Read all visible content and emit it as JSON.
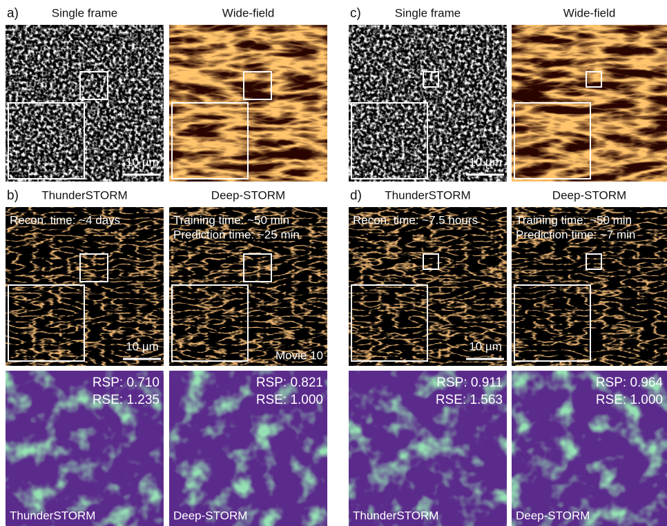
{
  "panels": [
    {
      "label": "a)",
      "frames": [
        {
          "title": "Single frame",
          "scale_bar": "10 µm"
        },
        {
          "title": "Wide-field"
        }
      ]
    },
    {
      "label": "b)",
      "frames": [
        {
          "title": "ThunderSTORM",
          "notes": [
            "Recon. time: ~4 days"
          ],
          "scale_bar": "10 µm",
          "rsp": "RSP: 0.710",
          "rse": "RSE: 1.235",
          "map_label": "ThunderSTORM"
        },
        {
          "title": "Deep-STORM",
          "notes": [
            "Training time: ~50 min",
            "Prediction time: ~25 min"
          ],
          "movie": "Movie 10",
          "rsp": "RSP: 0.821",
          "rse": "RSE: 1.000",
          "map_label": "Deep-STORM"
        }
      ]
    },
    {
      "label": "c)",
      "frames": [
        {
          "title": "Single frame",
          "scale_bar": "10 µm"
        },
        {
          "title": "Wide-field"
        }
      ]
    },
    {
      "label": "d)",
      "frames": [
        {
          "title": "ThunderSTORM",
          "notes": [
            "Recon. time: ~7.5 hours"
          ],
          "scale_bar": "10 µm",
          "rsp": "RSP: 0.911",
          "rse": "RSE: 1.563",
          "map_label": "ThunderSTORM"
        },
        {
          "title": "Deep-STORM",
          "notes": [
            "Training time: ~50 min",
            "Prediction time: ~7 min"
          ],
          "rsp": "RSP: 0.964",
          "rse": "RSE: 1.000",
          "map_label": "Deep-STORM"
        }
      ]
    }
  ]
}
